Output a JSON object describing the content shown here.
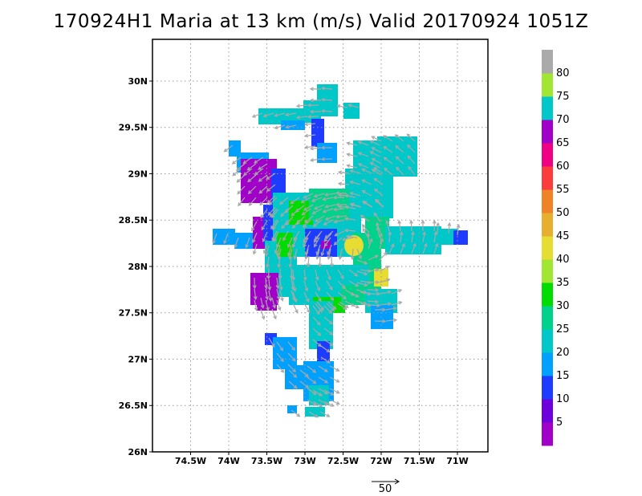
{
  "title": "170924H1 Maria at 13 km (m/s) Valid 20170924  1051Z",
  "map": {
    "lon_labels": [
      "74.5W",
      "74W",
      "73.5W",
      "73W",
      "72.5W",
      "72W",
      "71.5W",
      "71W"
    ],
    "lat_labels": [
      "30N",
      "29.5N",
      "29N",
      "28.5N",
      "28N",
      "27.5N",
      "27N",
      "26.5N",
      "26N"
    ],
    "lon_values": [
      -74.5,
      -74,
      -73.5,
      -73,
      -72.5,
      -72,
      -71.5,
      -71
    ],
    "lat_values": [
      30,
      29.5,
      29,
      28.5,
      28,
      27.5,
      27,
      26.5,
      26
    ],
    "lon_range": [
      -75.0,
      -70.6
    ],
    "lat_range": [
      26.0,
      30.45
    ],
    "grid": "dotted",
    "field": "wind speed (m/s)",
    "storm_center": {
      "lon": -72.3,
      "lat": 28.2
    }
  },
  "colorbar": {
    "labels": [
      "5",
      "10",
      "15",
      "20",
      "25",
      "30",
      "35",
      "40",
      "45",
      "50",
      "55",
      "60",
      "65",
      "70",
      "75",
      "80"
    ],
    "colors": [
      "#a000c8",
      "#6e00dc",
      "#1e3cff",
      "#00a0ff",
      "#00c8c8",
      "#00d28c",
      "#00dc00",
      "#a0e632",
      "#e6dc32",
      "#e6af2d",
      "#f08228",
      "#fa3c3c",
      "#f00082",
      "#a000c8",
      "#00c8c8",
      "#a0e632",
      "#aaaaaa"
    ]
  },
  "vector_scale": {
    "label": "50"
  },
  "wind_colors": {
    "calm": "#1e3cff",
    "light": "#00a0ff",
    "moderate": "#00c8c8",
    "fresh": "#00d28c",
    "strong": "#00dc00",
    "core": "#e6dc32",
    "outer": "#a000c8",
    "arrow": "#a8a8a8"
  }
}
